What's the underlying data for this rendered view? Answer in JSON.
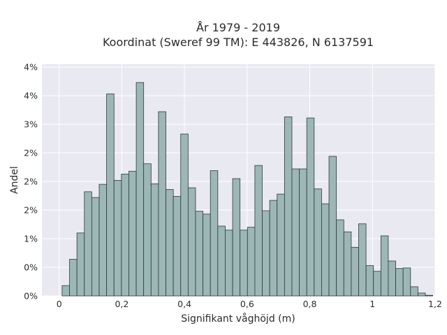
{
  "chart_data": {
    "type": "bar",
    "title_lines": [
      "År 1979 - 2019",
      "Koordinat (Sweref 99 TM): E 443826, N 6137591"
    ],
    "xlabel": "Signifikant våghöjd (m)",
    "ylabel": "Andel",
    "xlim": [
      -0.055,
      1.2
    ],
    "ylim": [
      0,
      0.0405
    ],
    "x_ticks": [
      0,
      0.2,
      0.4,
      0.6,
      0.8,
      1,
      1.2
    ],
    "x_tick_labels": [
      "0",
      "0,2",
      "0,4",
      "0,6",
      "0,8",
      "1",
      "1,2"
    ],
    "y_ticks": [
      0,
      0.005,
      0.01,
      0.015,
      0.02,
      0.025,
      0.03,
      0.035,
      0.04
    ],
    "y_tick_labels": [
      "0%",
      "0%",
      "1%",
      "2%",
      "2%",
      "2%",
      "3%",
      "4%",
      "4%"
    ],
    "grid": true,
    "bar_color": "#9db6b6",
    "bar_edge_color": "#2c3a3a",
    "background_color": "#e9e9f1",
    "bin_width": 0.02366,
    "bin_start": 0.0095,
    "values": [
      0.0018,
      0.0064,
      0.011,
      0.0182,
      0.0172,
      0.0195,
      0.0353,
      0.0202,
      0.0213,
      0.0218,
      0.0373,
      0.0231,
      0.0196,
      0.0322,
      0.0186,
      0.0174,
      0.0283,
      0.0189,
      0.0148,
      0.0143,
      0.0219,
      0.0122,
      0.0115,
      0.0205,
      0.0115,
      0.012,
      0.0228,
      0.0149,
      0.0167,
      0.0178,
      0.0313,
      0.0222,
      0.0222,
      0.0311,
      0.0187,
      0.0161,
      0.0244,
      0.0133,
      0.0112,
      0.0085,
      0.0126,
      0.0053,
      0.0043,
      0.0105,
      0.0061,
      0.0048,
      0.0049,
      0.0016,
      0.0005,
      0.0001
    ]
  }
}
